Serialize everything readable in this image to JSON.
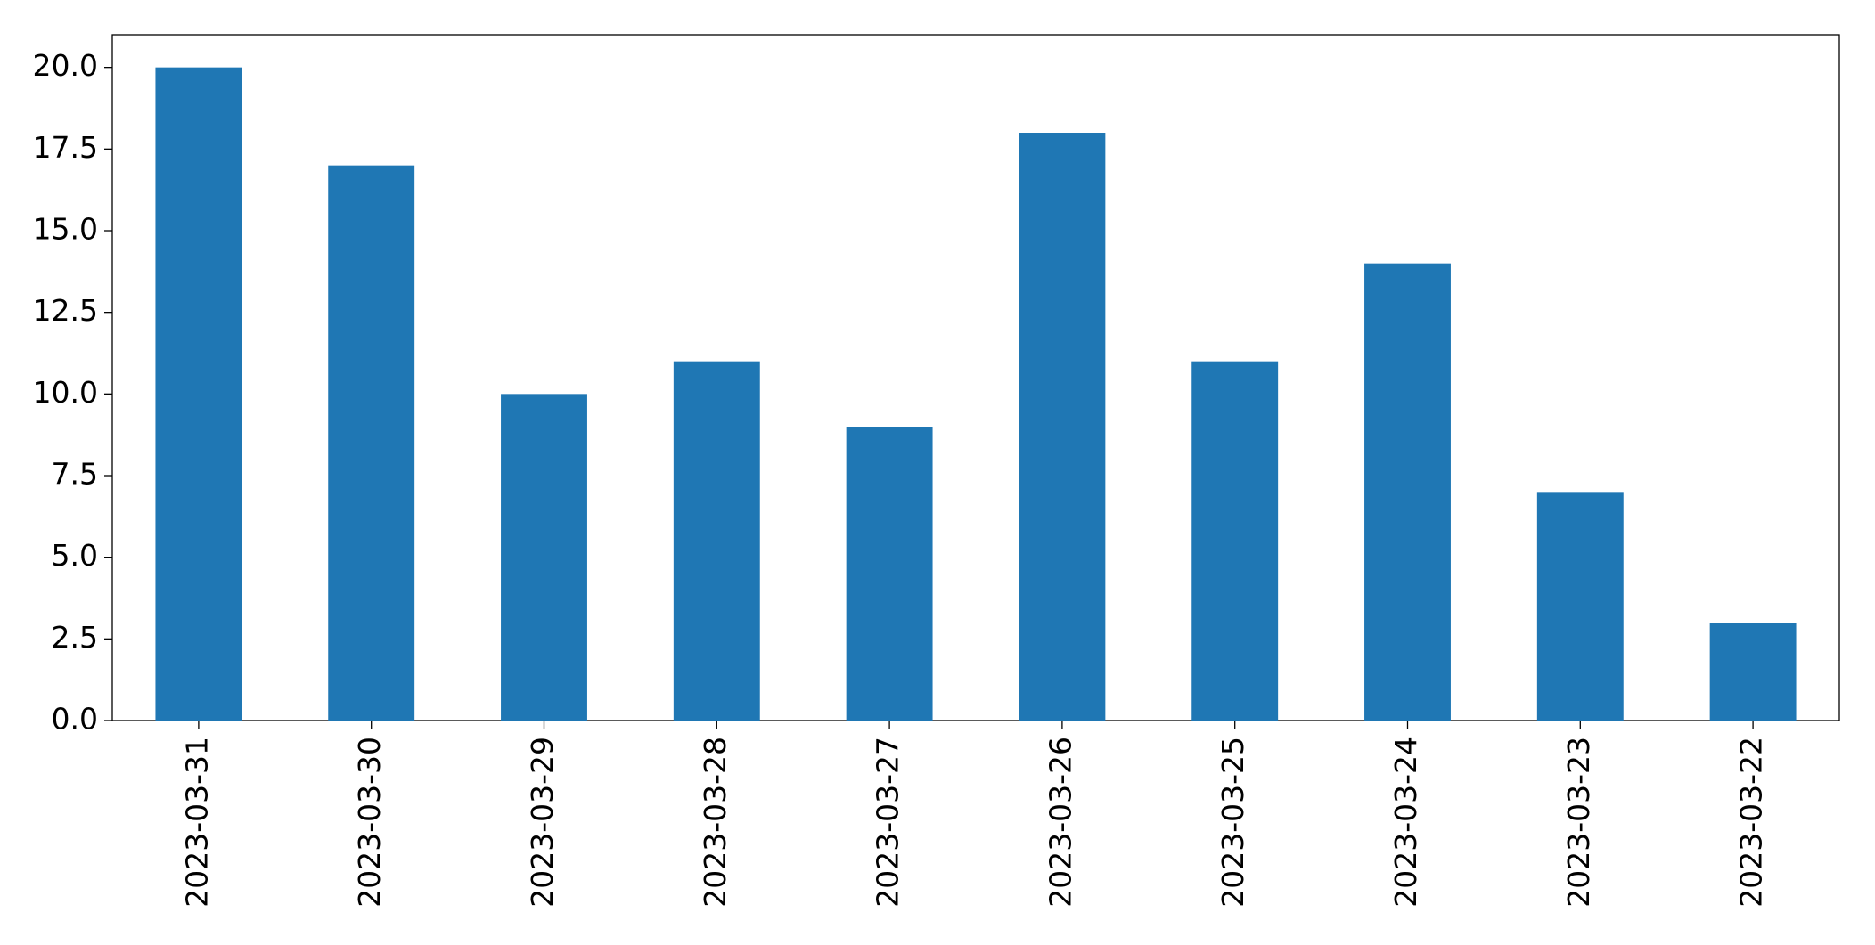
{
  "chart_data": {
    "type": "bar",
    "categories": [
      "2023-03-31",
      "2023-03-30",
      "2023-03-29",
      "2023-03-28",
      "2023-03-27",
      "2023-03-26",
      "2023-03-25",
      "2023-03-24",
      "2023-03-23",
      "2023-03-22"
    ],
    "values": [
      20,
      17,
      10,
      11,
      9,
      18,
      11,
      14,
      7,
      3
    ],
    "color": "#1f77b4",
    "ylim": [
      0,
      21
    ],
    "yticks": [
      {
        "value": 0,
        "label": "0.0"
      },
      {
        "value": 2.5,
        "label": "2.5"
      },
      {
        "value": 5,
        "label": "5.0"
      },
      {
        "value": 7.5,
        "label": "7.5"
      },
      {
        "value": 10,
        "label": "10.0"
      },
      {
        "value": 12.5,
        "label": "12.5"
      },
      {
        "value": 15,
        "label": "15.0"
      },
      {
        "value": 17.5,
        "label": "17.5"
      },
      {
        "value": 20,
        "label": "20.0"
      }
    ],
    "grid": false
  }
}
